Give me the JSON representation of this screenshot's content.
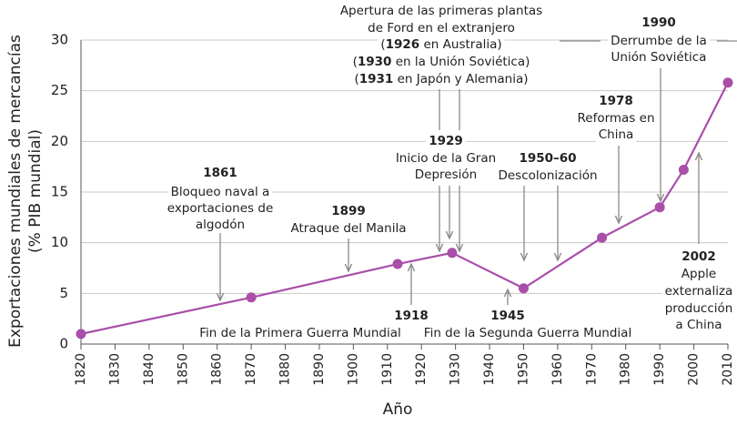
{
  "chart_data": {
    "type": "line",
    "y_label_lines": [
      "Exportaciones mundiales de mercancías",
      "(% PIB mundial)"
    ],
    "x_label": "Año",
    "x": [
      1820,
      1870,
      1913,
      1929,
      1950,
      1973,
      1990,
      1997,
      2010
    ],
    "series": [
      {
        "name": "Exportaciones",
        "color": "#a94ea9",
        "values": [
          1.0,
          4.6,
          7.9,
          9.0,
          5.5,
          10.5,
          13.5,
          17.2,
          25.8
        ]
      }
    ],
    "xlim": [
      1820,
      2010
    ],
    "xticks": [
      1820,
      1830,
      1840,
      1850,
      1860,
      1870,
      1880,
      1890,
      1900,
      1910,
      1920,
      1930,
      1940,
      1950,
      1960,
      1970,
      1980,
      1990,
      2000,
      2010
    ],
    "ylim": [
      0,
      30
    ],
    "yticks": [
      0,
      5,
      10,
      15,
      20,
      25,
      30
    ],
    "grid": true,
    "annotations": [
      {
        "lines": [
          [
            {
              "text": "1861",
              "bold": true
            }
          ],
          [
            {
              "text": "Bloqueo naval a"
            }
          ],
          [
            {
              "text": "exportaciones de"
            }
          ],
          [
            {
              "text": "algodón"
            }
          ]
        ]
      },
      {
        "lines": [
          [
            {
              "text": "1899",
              "bold": true
            }
          ],
          [
            {
              "text": "Atraque del Manila"
            }
          ]
        ]
      },
      {
        "lines": [
          [
            {
              "text": "Apertura de las primeras plantas"
            }
          ],
          [
            {
              "text": "de Ford en el extranjero"
            }
          ],
          [
            {
              "text": "("
            },
            {
              "text": "1926",
              "bold": true
            },
            {
              "text": " en Australia)"
            }
          ],
          [
            {
              "text": "("
            },
            {
              "text": "1930",
              "bold": true
            },
            {
              "text": " en la Unión Soviética)"
            }
          ],
          [
            {
              "text": "("
            },
            {
              "text": "1931",
              "bold": true
            },
            {
              "text": " en Japón y Alemania)"
            }
          ]
        ]
      },
      {
        "lines": [
          [
            {
              "text": "1929",
              "bold": true
            }
          ],
          [
            {
              "text": "Inicio de la Gran"
            }
          ],
          [
            {
              "text": "Depresión"
            }
          ]
        ]
      },
      {
        "lines": [
          [
            {
              "text": "1950–60",
              "bold": true
            }
          ],
          [
            {
              "text": "Descolonización"
            }
          ]
        ]
      },
      {
        "lines": [
          [
            {
              "text": "1978",
              "bold": true
            }
          ],
          [
            {
              "text": "Reformas en"
            }
          ],
          [
            {
              "text": "China"
            }
          ]
        ]
      },
      {
        "lines": [
          [
            {
              "text": "1990",
              "bold": true
            }
          ],
          [
            {
              "text": "Derrumbe de la"
            }
          ],
          [
            {
              "text": "Unión Soviética"
            }
          ]
        ]
      },
      {
        "lines": [
          [
            {
              "text": "2002",
              "bold": true
            }
          ],
          [
            {
              "text": "Apple"
            }
          ],
          [
            {
              "text": "externaliza"
            }
          ],
          [
            {
              "text": "producción"
            }
          ],
          [
            {
              "text": "a China"
            }
          ]
        ]
      },
      {
        "lines": [
          [
            {
              "text": "1918",
              "bold": true
            }
          ],
          [
            {
              "text": "Fin de la Primera Guerra Mundial"
            }
          ]
        ]
      },
      {
        "lines": [
          [
            {
              "text": "1945",
              "bold": true
            }
          ],
          [
            {
              "text": "Fin de la Segunda Guerra Mundial"
            }
          ]
        ]
      }
    ]
  }
}
